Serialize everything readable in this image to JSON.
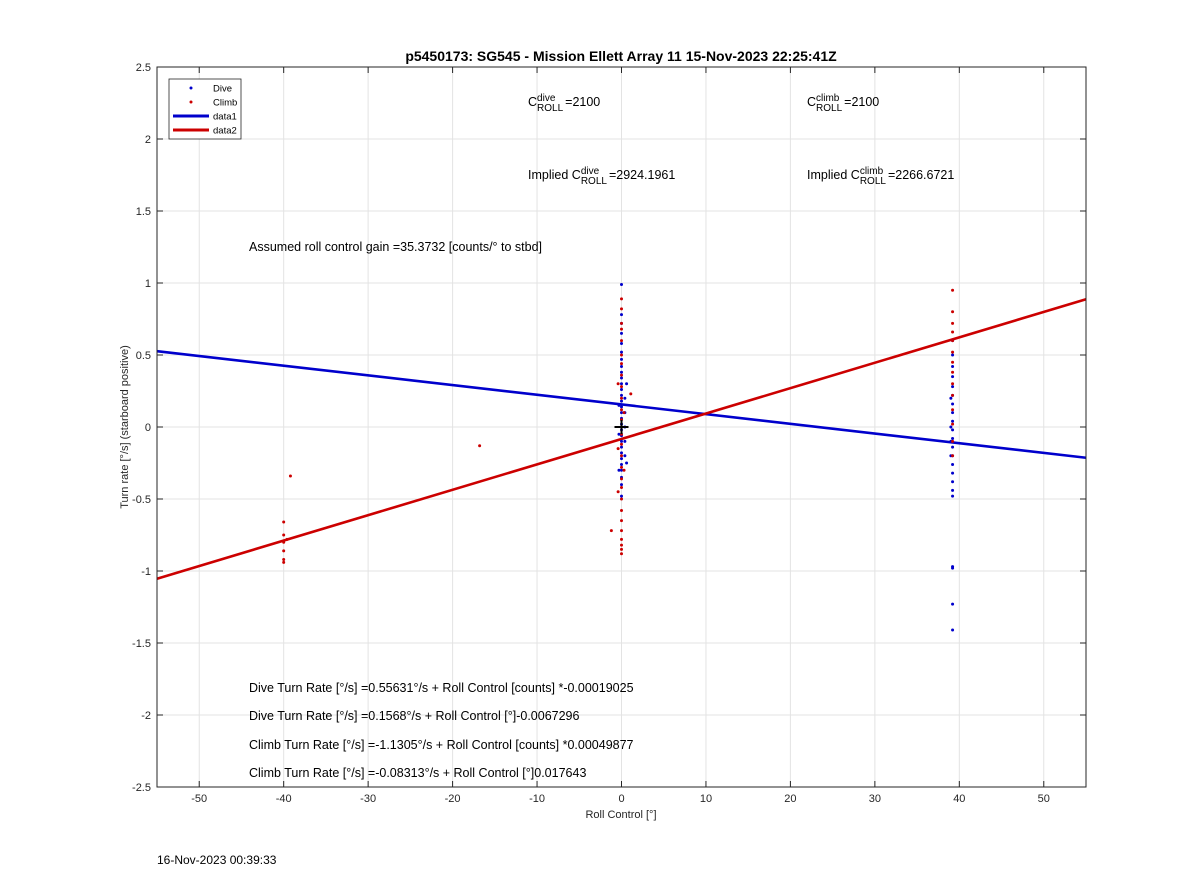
{
  "chart_data": {
    "type": "scatter",
    "title": "p5450173: SG545 - Mission Ellett Array 11 15-Nov-2023 22:25:41Z",
    "xlabel": "Roll Control [°]",
    "ylabel": "Turn rate [°/s] (starboard positive)",
    "xlim": [
      -55,
      55
    ],
    "ylim": [
      -2.5,
      2.5
    ],
    "xticks": [
      -50,
      -40,
      -30,
      -20,
      -10,
      0,
      10,
      20,
      30,
      40,
      50
    ],
    "yticks": [
      -2.5,
      -2,
      -1.5,
      -1,
      -0.5,
      0,
      0.5,
      1,
      1.5,
      2,
      2.5
    ],
    "xtick_labels": [
      "-50",
      "-40",
      "-30",
      "-20",
      "-10",
      "0",
      "10",
      "20",
      "30",
      "40",
      "50"
    ],
    "ytick_labels": [
      "-2.5",
      "-2",
      "-1.5",
      "-1",
      "-0.5",
      "0",
      "0.5",
      "1",
      "1.5",
      "2",
      "2.5"
    ],
    "grid": true,
    "legend_position": "top-left",
    "legend": [
      {
        "label": "Dive",
        "kind": "dot",
        "color": "#0000cc"
      },
      {
        "label": "Climb",
        "kind": "dot",
        "color": "#cc0000"
      },
      {
        "label": "data1",
        "kind": "line",
        "color": "#0000cc"
      },
      {
        "label": "data2",
        "kind": "line",
        "color": "#cc0000"
      }
    ],
    "series": [
      {
        "name": "Dive",
        "color": "#0000cc",
        "points": [
          [
            0,
            0.99
          ],
          [
            0,
            0.78
          ],
          [
            0,
            0.72
          ],
          [
            0,
            0.65
          ],
          [
            0,
            0.58
          ],
          [
            0,
            0.52
          ],
          [
            0,
            0.47
          ],
          [
            0,
            0.42
          ],
          [
            0,
            0.38
          ],
          [
            0,
            0.34
          ],
          [
            0,
            0.3
          ],
          [
            0,
            0.26
          ],
          [
            0,
            0.22
          ],
          [
            0,
            0.18
          ],
          [
            0,
            0.14
          ],
          [
            0,
            0.1
          ],
          [
            0,
            0.06
          ],
          [
            0,
            0.02
          ],
          [
            0,
            -0.02
          ],
          [
            0,
            -0.06
          ],
          [
            0,
            -0.1
          ],
          [
            0,
            -0.14
          ],
          [
            0,
            -0.18
          ],
          [
            0,
            -0.22
          ],
          [
            0,
            -0.26
          ],
          [
            0,
            -0.3
          ],
          [
            0,
            -0.35
          ],
          [
            0,
            -0.4
          ],
          [
            0,
            -0.48
          ],
          [
            0.4,
            0.2
          ],
          [
            0.4,
            0.1
          ],
          [
            0.4,
            0.0
          ],
          [
            0.4,
            -0.1
          ],
          [
            0.4,
            -0.2
          ],
          [
            0.6,
            0.3
          ],
          [
            0.6,
            -0.25
          ],
          [
            -0.3,
            0.15
          ],
          [
            -0.3,
            -0.05
          ],
          [
            -0.3,
            -0.3
          ],
          [
            39.2,
            0.6
          ],
          [
            39.2,
            0.5
          ],
          [
            39.2,
            0.42
          ],
          [
            39.2,
            0.35
          ],
          [
            39.2,
            0.28
          ],
          [
            39.2,
            0.22
          ],
          [
            39.2,
            0.16
          ],
          [
            39.2,
            0.1
          ],
          [
            39.2,
            0.04
          ],
          [
            39.2,
            -0.02
          ],
          [
            39.2,
            -0.08
          ],
          [
            39.2,
            -0.14
          ],
          [
            39.2,
            -0.2
          ],
          [
            39.2,
            -0.26
          ],
          [
            39.2,
            -0.32
          ],
          [
            39.2,
            -0.38
          ],
          [
            39.2,
            -0.44
          ],
          [
            39.2,
            -0.48
          ],
          [
            39.2,
            -0.97
          ],
          [
            39.2,
            -0.98
          ],
          [
            39.2,
            -1.23
          ],
          [
            39.2,
            -1.41
          ],
          [
            39.0,
            0.0
          ],
          [
            39.0,
            -0.1
          ],
          [
            39.0,
            -0.2
          ],
          [
            39.0,
            0.2
          ]
        ]
      },
      {
        "name": "Climb",
        "color": "#cc0000",
        "points": [
          [
            0,
            0.89
          ],
          [
            0,
            0.82
          ],
          [
            0,
            0.72
          ],
          [
            0,
            0.68
          ],
          [
            0,
            0.6
          ],
          [
            0,
            0.5
          ],
          [
            0,
            0.44
          ],
          [
            0,
            0.36
          ],
          [
            0,
            0.28
          ],
          [
            0,
            0.2
          ],
          [
            0,
            0.12
          ],
          [
            0,
            0.05
          ],
          [
            0,
            -0.05
          ],
          [
            0,
            -0.12
          ],
          [
            0,
            -0.2
          ],
          [
            0,
            -0.28
          ],
          [
            0,
            -0.36
          ],
          [
            0,
            -0.42
          ],
          [
            0,
            -0.5
          ],
          [
            0,
            -0.58
          ],
          [
            0,
            -0.65
          ],
          [
            0,
            -0.72
          ],
          [
            0,
            -0.78
          ],
          [
            0,
            -0.82
          ],
          [
            0,
            -0.85
          ],
          [
            0,
            -0.88
          ],
          [
            -0.4,
            0.3
          ],
          [
            -0.4,
            -0.15
          ],
          [
            -0.4,
            -0.45
          ],
          [
            0.3,
            -0.3
          ],
          [
            0.3,
            0.1
          ],
          [
            1.1,
            0.23
          ],
          [
            -1.2,
            -0.72
          ],
          [
            -40,
            -0.66
          ],
          [
            -40,
            -0.75
          ],
          [
            -40,
            -0.8
          ],
          [
            -40,
            -0.86
          ],
          [
            -40,
            -0.92
          ],
          [
            -40,
            -0.94
          ],
          [
            -39.2,
            -0.34
          ],
          [
            -39.6,
            -0.78
          ],
          [
            -16.8,
            -0.13
          ],
          [
            39.2,
            0.95
          ],
          [
            39.2,
            0.8
          ],
          [
            39.2,
            0.72
          ],
          [
            39.2,
            0.66
          ],
          [
            39.2,
            0.6
          ],
          [
            39.2,
            0.52
          ],
          [
            39.2,
            0.45
          ],
          [
            39.2,
            0.38
          ],
          [
            39.2,
            0.3
          ],
          [
            39.2,
            0.22
          ],
          [
            39.2,
            0.12
          ],
          [
            39.2,
            0.02
          ],
          [
            39.2,
            -0.1
          ],
          [
            39.2,
            -0.2
          ]
        ]
      }
    ],
    "lines": [
      {
        "name": "data1",
        "color": "#0000cc",
        "x": [
          -55,
          55
        ],
        "y": [
          0.5267,
          -0.2135
        ]
      },
      {
        "name": "data2",
        "color": "#cc0000",
        "x": [
          -55,
          55
        ],
        "y": [
          -1.0535,
          0.8873
        ]
      }
    ],
    "marker": {
      "x": 0,
      "y": 0,
      "symbol": "+",
      "color": "#000000"
    },
    "annotations": {
      "c_dive": {
        "c": "C",
        "sup": "dive",
        "sub": "ROLL",
        "value": "=2100"
      },
      "c_climb": {
        "c": "C",
        "sup": "climb",
        "sub": "ROLL",
        "value": "=2100"
      },
      "implied_dive": {
        "prefix": "Implied ",
        "c": "C",
        "sup": "dive",
        "sub": "ROLL",
        "value": "=2924.1961"
      },
      "implied_climb": {
        "prefix": "Implied ",
        "c": "C",
        "sup": "climb",
        "sub": "ROLL",
        "value": "=2266.6721"
      },
      "gain": "Assumed roll control gain =35.3732 [counts/° to stbd]",
      "eq1": "Dive Turn Rate [°/s] =0.55631°/s + Roll Control [counts] *-0.00019025",
      "eq2": "Dive Turn Rate [°/s] =0.1568°/s + Roll Control [°]-0.0067296",
      "eq3": "Climb Turn Rate [°/s] =-1.1305°/s + Roll Control [counts] *0.00049877",
      "eq4": "Climb Turn Rate [°/s] =-0.08313°/s + Roll Control [°]0.017643"
    },
    "footer": "16-Nov-2023 00:39:33"
  }
}
